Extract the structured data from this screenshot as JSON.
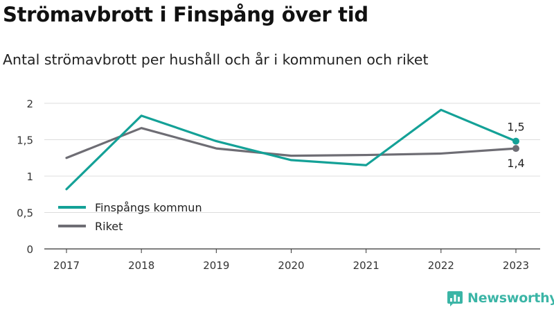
{
  "title": "Strömavbrott i Finspång över tid",
  "subtitle": "Antal strömavbrott per hushåll och år i kommunen och riket",
  "brand": {
    "name": "Newsworthy",
    "icon": "newsworthy-logo-icon",
    "color": "#3bb5a6"
  },
  "chart_data": {
    "type": "line",
    "title": "Strömavbrott i Finspång över tid",
    "subtitle": "Antal strömavbrott per hushåll och år i kommunen och riket",
    "xlabel": "",
    "ylabel": "",
    "categories": [
      "2017",
      "2018",
      "2019",
      "2020",
      "2021",
      "2022",
      "2023"
    ],
    "ylim": [
      0,
      2
    ],
    "yticks": [
      0,
      0.5,
      1,
      1.5,
      2
    ],
    "ytick_labels": [
      "0",
      "0,5",
      "1",
      "1,5",
      "2"
    ],
    "grid": true,
    "legend_position": "bottom-left",
    "series": [
      {
        "name": "Finspångs kommun",
        "color": "#14a197",
        "values": [
          0.82,
          1.83,
          1.48,
          1.22,
          1.15,
          1.91,
          1.48
        ],
        "end_label": "1,5",
        "end_label_position": "above"
      },
      {
        "name": "Riket",
        "color": "#6e6d74",
        "values": [
          1.25,
          1.66,
          1.38,
          1.28,
          1.29,
          1.31,
          1.38
        ],
        "end_label": "1,4",
        "end_label_position": "below"
      }
    ]
  }
}
